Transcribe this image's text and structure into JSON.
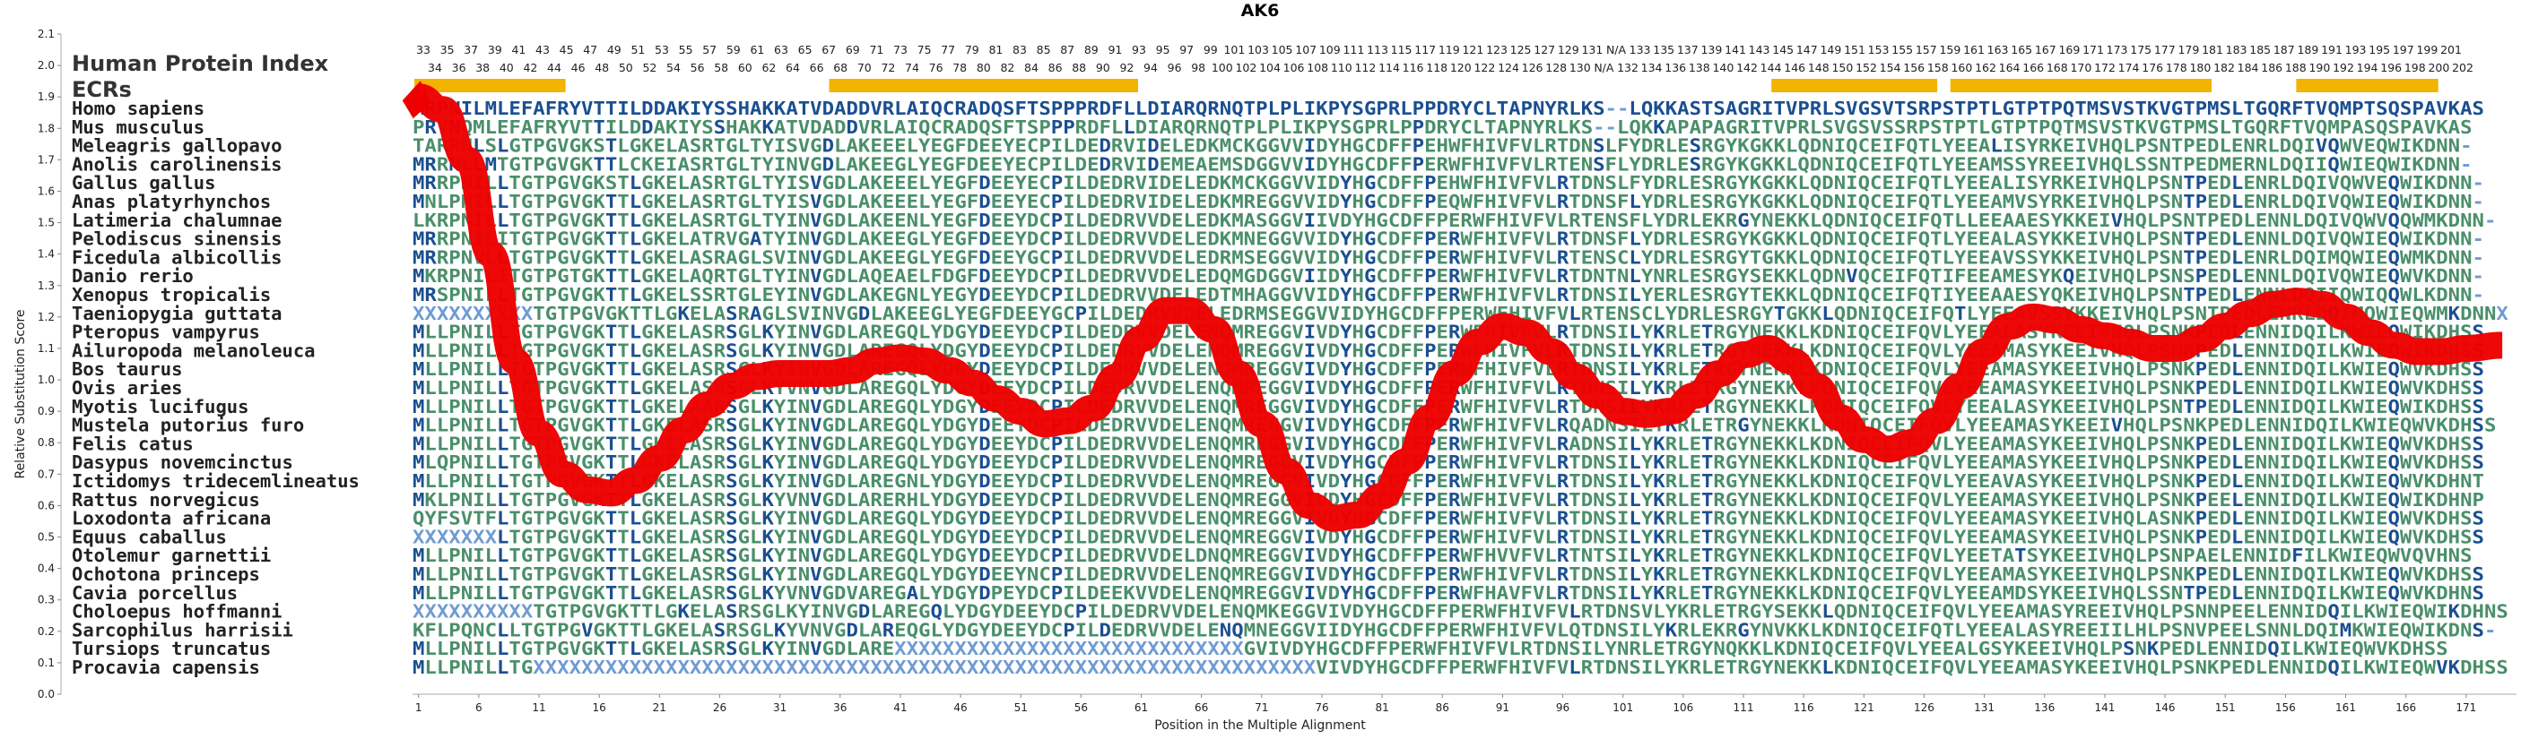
{
  "chart_data": {
    "type": "line",
    "title": "AK6",
    "xlabel": "Position in the Multiple Alignment",
    "ylabel": "Relative Substitution Score",
    "ylim": [
      0.0,
      2.1
    ],
    "xlim": [
      1,
      174
    ],
    "yticks": [
      "0.0",
      "0.1",
      "0.2",
      "0.3",
      "0.4",
      "0.5",
      "0.6",
      "0.7",
      "0.8",
      "0.9",
      "1.0",
      "1.1",
      "1.2",
      "1.3",
      "1.4",
      "1.5",
      "1.6",
      "1.7",
      "1.8",
      "1.9",
      "2.0",
      "2.1"
    ],
    "xticks": [
      "1",
      "6",
      "11",
      "16",
      "21",
      "26",
      "31",
      "36",
      "41",
      "46",
      "51",
      "56",
      "61",
      "66",
      "71",
      "76",
      "81",
      "86",
      "91",
      "96",
      "101",
      "106",
      "111",
      "116",
      "121",
      "126",
      "131",
      "136",
      "141",
      "146",
      "151",
      "156",
      "161",
      "166",
      "171"
    ],
    "index_row_top": [
      "33",
      "35",
      "37",
      "39",
      "41",
      "43",
      "45",
      "47",
      "49",
      "51",
      "53",
      "55",
      "57",
      "59",
      "61",
      "63",
      "65",
      "67",
      "69",
      "71",
      "73",
      "75",
      "77",
      "79",
      "81",
      "83",
      "85",
      "87",
      "89",
      "91",
      "93",
      "95",
      "97",
      "99",
      "101",
      "103",
      "105",
      "107",
      "109",
      "111",
      "113",
      "115",
      "117",
      "119",
      "121",
      "123",
      "125",
      "127",
      "129",
      "131",
      "N/A",
      "133",
      "135",
      "137",
      "139",
      "141",
      "143",
      "145",
      "147",
      "149",
      "151",
      "153",
      "155",
      "157",
      "159",
      "161",
      "163",
      "165",
      "167",
      "169",
      "171",
      "173",
      "175",
      "177",
      "179",
      "181",
      "183",
      "185",
      "187",
      "189",
      "191",
      "193",
      "195",
      "197",
      "199",
      "201"
    ],
    "index_row_bottom": [
      "34",
      "36",
      "38",
      "40",
      "42",
      "44",
      "46",
      "48",
      "50",
      "52",
      "54",
      "56",
      "58",
      "60",
      "62",
      "64",
      "66",
      "68",
      "70",
      "72",
      "74",
      "76",
      "78",
      "80",
      "82",
      "84",
      "86",
      "88",
      "90",
      "92",
      "94",
      "96",
      "98",
      "100",
      "102",
      "104",
      "106",
      "108",
      "110",
      "112",
      "114",
      "116",
      "118",
      "120",
      "122",
      "124",
      "126",
      "128",
      "130",
      "N/A",
      "132",
      "134",
      "136",
      "138",
      "140",
      "142",
      "144",
      "146",
      "148",
      "150",
      "152",
      "154",
      "156",
      "158",
      "160",
      "162",
      "164",
      "166",
      "168",
      "170",
      "172",
      "174",
      "176",
      "178",
      "180",
      "182",
      "184",
      "186",
      "188",
      "190",
      "192",
      "194",
      "196",
      "198",
      "200",
      "202"
    ],
    "header_label": "Human Protein Index",
    "ecr_label": "ECRs",
    "ecr_segments": [
      [
        1,
        45
      ],
      [
        68,
        93
      ],
      [
        147,
        160
      ],
      [
        162,
        183
      ],
      [
        191,
        202
      ]
    ],
    "series": [
      {
        "name": "",
        "color": "#ee0000",
        "x": [
          1,
          3,
          5,
          7,
          9,
          11,
          13,
          15,
          17,
          19,
          21,
          23,
          25,
          27,
          29,
          31,
          33,
          35,
          37,
          39,
          41,
          43,
          45,
          47,
          49,
          51,
          53,
          55,
          57,
          59,
          61,
          63,
          65,
          67,
          69,
          71,
          73,
          75,
          77,
          79,
          81,
          83,
          85,
          87,
          89,
          91,
          93,
          95,
          97,
          99,
          101,
          103,
          105,
          107,
          109,
          111,
          113,
          115,
          117,
          119,
          121,
          123,
          125,
          127,
          129,
          131,
          133,
          135,
          137,
          139,
          141,
          143,
          145,
          147,
          149,
          151,
          153,
          155,
          157,
          159,
          161,
          163,
          165,
          167,
          169,
          171,
          174
        ],
        "y": [
          1.9,
          1.86,
          1.7,
          1.4,
          1.06,
          0.83,
          0.7,
          0.65,
          0.64,
          0.68,
          0.75,
          0.84,
          0.92,
          0.98,
          1.01,
          1.02,
          1.02,
          1.02,
          1.03,
          1.06,
          1.07,
          1.06,
          1.03,
          0.99,
          0.94,
          0.9,
          0.86,
          0.87,
          0.91,
          1.01,
          1.13,
          1.22,
          1.22,
          1.16,
          1.02,
          0.86,
          0.71,
          0.6,
          0.56,
          0.57,
          0.63,
          0.74,
          0.88,
          1.02,
          1.12,
          1.17,
          1.15,
          1.09,
          1.01,
          0.95,
          0.9,
          0.89,
          0.9,
          0.95,
          1.02,
          1.08,
          1.1,
          1.06,
          0.98,
          0.88,
          0.81,
          0.78,
          0.8,
          0.87,
          0.98,
          1.09,
          1.17,
          1.2,
          1.19,
          1.16,
          1.14,
          1.12,
          1.1,
          1.1,
          1.13,
          1.17,
          1.21,
          1.24,
          1.25,
          1.24,
          1.2,
          1.15,
          1.11,
          1.09,
          1.09,
          1.1,
          1.11
        ]
      }
    ],
    "rows": [
      {
        "name": "Homo sapiens",
        "seq": "MRPNILMLEFAFRYVTTILDDAKIYSSHAKKATVDADDVRLAIQCRADQSFTSPPPRDFLLDIARQRNQTPLPLIKPYSGPRLPPDRYCLTAPNYRLKS--LQKKASTSAGRITVPRLSVGSVTSRPSTPTLGTPTPQTMSVSTKVGTPMSLTGQRFTVQMPTSQSPAVKAS"
      },
      {
        "name": "Mus musculus",
        "seq": "PRVNQMLEFAFRYVTTILDDAKIYSSHAKKATVDADDVRLAIQCRADQSFTSPPPRDFLLDIARQRNQTPLPLIKPYSGPRLPPDRYCLTAPNYRLKS--LQKKAPAPAGRITVPRLSVGSVSSRPSTPTLGTPTPQTMSVSTKVGTPMSLTGQRFTVQMPASQSPAVKAS"
      },
      {
        "name": "Meleagris gallopavo",
        "seq": "TARRHLSLGTPGVGKSTLGKELASRTGLTYISVGDLAKEEELYEGFDEEYECPILDEDRVIDELEDKMCKGGVVIDYHGCDFFPEHWFHIVFVLRTDNSLFYDRLESRGYKGKKLQDNIQCEIFQTLYEEALISYRKEIVHQLPSNTPEDLENRLDQIVQWVEQWIKDNN-"
      },
      {
        "name": "Anolis carolinensis",
        "seq": "MRRNLLMTGTPGVGKTTLCKEIASRTGLTYINVGDLAKEEGLYEGFDEEYECPILDEDRVIDEMEAEMSDGGVVIDYHGCDFFPERWFHIVFVLRTENSFLYDRLESRGYKGKKLQDNIQCEIFQTLYEEAMSSYREEIVHQLSSNTPEDMERNLDQIIQWIEQWIKDNN-"
      },
      {
        "name": "Gallus gallus",
        "seq": "MRRPNILLTGTPGVGKSTLGKELASRTGLTYISVGDLAKEEELYEGFDEEYECPILDEDRVIDELEDKMCKGGVVIDYHGCDFFPEHWFHIVFVLRTDNSLFYDRLESRGYKGKKLQDNIQCEIFQTLYEEALISYRKEIVHQLPSNTPEDLENRLDQIVQWVEQWIKDNN-"
      },
      {
        "name": "Anas platyrhynchos",
        "seq": "MNLPNILLTGTPGVGKTTLGKELASRTGLTYISVGDLAKEEELYEGFDEEYECPILDEDRVIDELEDKMREGGVVIDYHGCDFFPEQWFHIVFVLRTDNSFLYDRLESRGYKGKKLQDNIQCEIFQTLYEEAMVSYRKEIVHQLPSNTPEDLENRLDQIVQWIEQWIKDNN-"
      },
      {
        "name": "Latimeria chalumnae",
        "seq": "LKRPNILLTGTPGVGKTTLGKELASRTGLTYINVGDLAKEENLYEGFDEEYDCPILDEDRVVDELEDKMASGGVIIVDYHGCDFFPERWFHIVFVLRTENSFLYDRLEKRGYNEKKLQDNIQCEIFQTLLEEAAESYKKEIVHQLPSNTPEDLENNLDQIVQWVQQWMKDNN-"
      },
      {
        "name": "Pelodiscus sinensis",
        "seq": "MRRPNILITGTPGVGKTTLGKELATRVGATYINVGDLAKEEGLYEGFDEEYDCPILDEDRVVDELEDKMNEGGVVIDYHGCDFFPERWFHIVFVLRTDNSFLYDRLESRGYKGKKLQDNIQCEIFQTLYEEALASYKKEIVHQLPSNTPEDLENNLDQIVQWIEQWIKDNN-"
      },
      {
        "name": "Ficedula albicollis",
        "seq": "MRRPNVLLTGTPGVGKTTLGKELASRAGLSVINVGDLAKEEGLYEGFDEEYGCPILDEDRVVDELEDRMSEGGVVIDYHGCDFFPERWFHIVFVLRTENSCLYDRLESRGYTGKKLQDNIQCEIFQTLYEEAVSSYKKEIVHQLPSNTPEDLENRLDQIMQWIEQWMKDNN-"
      },
      {
        "name": "Danio rerio",
        "seq": "MKRPNILITGTPGTGKTTLGKELAQRTGLTYINVGDLAQEAELFDGFDEEYDCPILDEDRVVDELEDQMGDGGVIIDYHGCDFFPERWFHIVFVLRTDNTNLYNRLESRGYSEKKLQDNVQCEIFQTIFEEAMESYKQEIVHQLPSNSPEDLENNLDQIVQWIEQWVKDNN-"
      },
      {
        "name": "Xenopus tropicalis",
        "seq": "MRSPNILLTGTPGVGKTTLGKELSSRTGLEYINVGDLAKEGNLYEGYDEEYDCPILDEDRVVDELEDTMHAGGVVIDYHGCDFFPERWFHIVFVLRTDNSILYERLESRGYTEKKLQDNIQCEIFQTIYEEAAESYQKEIVHQLPSNTPEDLENNLDQIIQWIQQWLKDNN-"
      },
      {
        "name": "Taeniopygia guttata",
        "seq": "XXXXXXXXXXTGTPGVGKTTLGKELASRAGLSVINVGDLAKEEGLYEGFDEEYGCPILDEDRVVDELEDRMSEGGVVIDYHGCDFFPERWFHIVFVLRTENSCLYDRLESRGYTGKKLQDNIQCEIFQTLYEEAVSSYKKEIVHQLPSNTPEDLENRLDQIMQWIEQWMKDNNX"
      },
      {
        "name": "Pteropus vampyrus",
        "seq": "MLLPNILLTGTPGVGKTTLGKELASRSGLKYINVGDLAREGQLYDGYDEEYDCPILDEDRVVDELENQMREGGVIVDYHGCDFFPERWFHIVFVLRTDNSILYKRLETRGYNEKKLKDNIQCEIFQVLYEEALASYKEEIVHQLPSNKPEDLENNIDQILKWIEQWIKDHSS"
      },
      {
        "name": "Ailuropoda melanoleuca",
        "seq": "MLLPNILLTGTPGVGKTTLGKELASRSGLKYINVGDLAREGQLYDGYDEEYDCPILDEDRVVDELENQMREGGVIVDYHGCDFFPERWFHIVFVLRTDNSILYKRLETRGYNEKKLKDNIQCEIFQVLYEEAMASYKEEIVHQLPSNKPEDLENNIDQILKWIEQWIKDHSS"
      },
      {
        "name": "Bos taurus",
        "seq": "MLLPNILLTGTPGVGKTTLGKELASRSGLKYINVGDLAREGQLYDGYDEEYDCPILDEDRVVDELENQMREGGVIVDYHGCDFFPERWFHIVFVLRTDNSILYKRLETRGYNEKKLKDNIQCEIFQVLYEEAMASYKEEIVHQLPSNKPEDLENNIDQILKWIEQWVKDHSS"
      },
      {
        "name": "Ovis aries",
        "seq": "MLLPNILLTGTPGVGKTTLGKELASRSGLKYVNVGDLAREGQLYDGYDEEYDCPILDEDRVVDELENQMREGGVIVDYHGCDFFPERWFHIVFVLRTDNSILYKRLETRGYNEKKLKDNIQCEIFQVLYEEAMASYKEEIVHQLPSNKPEDLENNIDQILKWIEQWVKDHSS"
      },
      {
        "name": "Myotis lucifugus",
        "seq": "MLLPNILLTGTPGVGKTTLGKELAARSGLKYINVGDLAREGQLYDGYDEEYDCPILDEDRVVDELENQMREGGVIVDYHGCDFFPERWFHIVFVLRTDNSILYKRLETRGYNEKKLKDNIQCEIFQVLYEEALASYKEEIVHQLPSNTPEDLENNIDQILKWIEQWIKDHSS"
      },
      {
        "name": "Mustela putorius furo",
        "seq": "MLLPNILLTGTPGVGKTTLGKELASRSGLKYINVGDLAREGQLYDGYDEEYDCPILDEDRVVDELENQMREGGVIVDYHGCDFFPERWFHIVFVLRQADNSILYKRLETRGYNEKKLKDNIQCEIFQVLYEEAMASYKEEIVHQLPSNKPEDLENNIDQILKWIEQWVKDHSS"
      },
      {
        "name": "Felis catus",
        "seq": "MLLPNILLTGTPGVGKTTLGKELASRSGLKYINVGDLAREGQLYDGYDEEYDCPILDEDRVVDELENQMREGGVIVDYHGCDFFPERWFHIVFVLRADNSILYKRLETRGYNEKKLKDNIQCEIFQVLYEEAMASYKEEIVHQLPSNKPEDLENNIDQILKWIEQWVKDHSS"
      },
      {
        "name": "Dasypus novemcinctus",
        "seq": "MLQPNILLTGTPGVGKTTLGKELASRSGLKYINVGDLAREGQLYDGYDEEYDCPILDEDRVVDELENQMREGGVIVDYHGCDFFPERWFHIVFVLRTDNSILYKRLETRGYNEKKLKDNIQCEIFQVLYEEAMASYKEEIVHQLPSNKPEDLENNIDQILKWIEQWVKDHSS"
      },
      {
        "name": "Ictidomys tridecemlineatus",
        "seq": "MLLPNILLTGTPGVGKTTLGKELASRSGLKYINVGDLAREGNLYDGYDEEYDCPILDEDRVVDELENQMREGGVIVDYHGCDFFPERWFHIVFVLRTDNSILYKRLETRGYNEKKLKDNIQCEIFQVLYEEAVASYKEEIVHQLPSNKPEDLENNIDQILKWIEQWVKDHNT"
      },
      {
        "name": "Rattus norvegicus",
        "seq": "MKLPNILLTGTPGVGKTTLGKELASRSGLKYVNVGDLARERHLYDGYDEEYDCPILDEDRVVDELENQMREGGVIVDYHGCDFFPERWFHIVFVLRTDNSILYKRLETRGYNEKKLKDNIQCEIFQVLYEEAMASYKEEIVHQLPSNKPEELENNIDQILKWIEQWIKDHNP"
      },
      {
        "name": "Loxodonta africana",
        "seq": "QYFSVTFLTGTPGVGKTTLGKELASRSGLKYINVGDLAREGQLYDGYDEEYDCPILDEDRVVDELENQMREGGVIVDYHGCDFFPERWFHIVFVLRTDNSILYKRLETRGYNEKKLKDNIQCEIFQVLYEEAMASYKEEIVHQLASNKPEDLENNIDQILKWIEQWVKDHSS"
      },
      {
        "name": "Equus caballus",
        "seq": "XXXXXXXLTGTPGVGKTTLGKELASRSGLKYINVGDLAREGQLYDGYDEEYDCPILDEDRVVDELENQMREGGVIVDYHGCDFFPERWFHIVFVLRTDNSILYKRLETRGYNEKKLKDNIQCEIFQVLYEEAMASYKEEIVHQLPSNKPEDLENNIDQILKWIEQWVKDHSS"
      },
      {
        "name": "Otolemur garnettii",
        "seq": "MLLPNILLTGTPGVGKTTLGKELASRSGLKYINVGDLAREGQLYDGYDEEYDCPILDEDRVVDELDNQMREGGVIVDYHGCDFFPERWFHVVFVLRTNTSILYKRLETRGYNEKKLKDNIQCEIFQVLYEETATSYKEEIVHQLPSNPAELENNIDFILKWIEQWVQVHNS"
      },
      {
        "name": "Ochotona princeps",
        "seq": "MLLPNILLTGTPGVGKTTLGKELASRSGLKYINVGDLAREGQLYDGYDEEYNCPILDEDRVVDELENQMREGGVIVDYHGCDFFPERWFHIVFVLRTDNSILYKRLETRGYNEKKLKDNIQCEIFQVLYEEAMASYKEEIVHQLPSNKPEDLENNIDQILKWIEQWVKDHSS"
      },
      {
        "name": "Cavia porcellus",
        "seq": "MLLPNILLTGTPGVGKTTLGKELASRSGLKYVNVGDVAREGALYDGYDPEYDCPILDEEKVVDELENQMREGGVIVDYHGCDFFPERWFHAVFVLRTDNSILYKRLETRGYNEKKLKDNIQCEIFQVLYEEAMDSYKEEIVHQLSSNTPEDLENNIDQILKWIEQWVKDHNS"
      },
      {
        "name": "Choloepus hoffmanni",
        "seq": "XXXXXXXXXXTGTPGVGKTTLGKELASRSGLKYINVGDLAREGQLYDGYDEEYDCPILDEDRVVDELENQMKEGGVIVDYHGCDFFPERWFHIVFVLRTDNSVLYKRLETRGYSEKKLQDNIQCEIFQVLYEEAMASYREEIVHQLPSNNPEELENNIDQILKWIEQWIKDHNS"
      },
      {
        "name": "Sarcophilus harrisii",
        "seq": "KFLPQNCLLTGTPGVGKTTLGKELASRSGLKYVNVGDLAREQGLYDGYDEEYDCPILDEDRVVDELENQMNEGGVIIDYHGCDFFPERWFHIVFVLQTDNSILYKRLEKRGYNVKKLKDNIQCEIFQTLYEEALASYREEIILHLPSNVPEELSNNLDQIMKWIEQWIKDNS-"
      },
      {
        "name": "Tursiops truncatus",
        "seq": "MLLPNILLTGTPGVGKTTLGKELASRSGLKYINVGDLAREXXXXXXXXXXXXXXXXXXXXXXXXXXXXXGVIVDYHGCDFFPERWFHIVFVLRTDNSILYNRLETRGYNQKKLKDNIQCEIFQVLYEEALGSYKEEIVHQLPSNKPEDLENNIDQILKWIEQWVKDHSS"
      },
      {
        "name": "Procavia capensis",
        "seq": "MLLPNILLTGXXXXXXXXXXXXXXXXXXXXXXXXXXXXXXXXXXXXXXXXXXXXXXXXXXXXXXXXXXXXXXXXXVIVDYHGCDFFPERWFHIVFVLRTDNSILYKRLETRGYNEKKLKDNIQCEIFQVLYEEAMASYKEEIVHQLPSNKPEDLENNIDQILKWIEQWVKDHSS"
      }
    ]
  },
  "colors": {
    "residue_conserved": "#1a4f91",
    "residue_similar": "#6f9bd1",
    "residue_variable": "#4a8f6a",
    "ecr_bar": "#f2b400",
    "curve": "#ee0000",
    "grid": "#dddddd"
  }
}
